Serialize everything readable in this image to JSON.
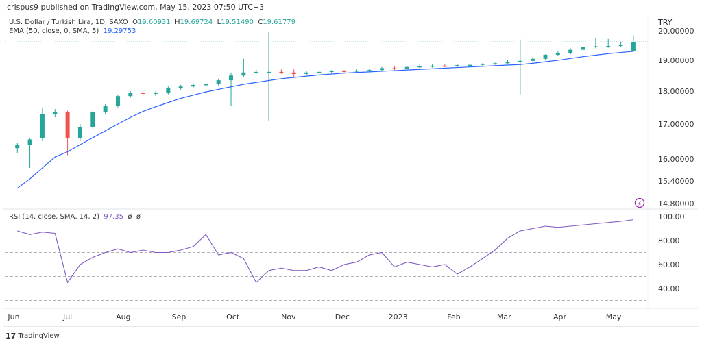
{
  "header": {
    "published": "crispus9 published on TradingView.com, May 15, 2023 07:50 UTC+3"
  },
  "legend": {
    "symbol": "U.S. Dollar / Turkish Lira, 1D, SAXO",
    "o_label": "O",
    "o": "19.60931",
    "h_label": "H",
    "h": "19.69724",
    "l_label": "L",
    "l": "19.51490",
    "c_label": "C",
    "c": "19.61779",
    "ema_label": "EMA (50, close, 0, SMA, 5)",
    "ema_value": "19.29753",
    "rsi_label": "RSI (14, close, SMA, 14, 2)",
    "rsi_value": "97.35",
    "rsi_na1": "ø",
    "rsi_na2": "ø"
  },
  "footer": {
    "brand": "TradingView"
  },
  "colors": {
    "up": "#26a69a",
    "down": "#ef5350",
    "ema": "#2962ff",
    "rsi": "#7e57c2",
    "lightning": "#9c27b0"
  },
  "chart_data": [
    {
      "type": "candlestick",
      "currency": "TRY",
      "scale": "log",
      "ylim": [
        14.8,
        20.0
      ],
      "y_ticks": [
        "20.00000",
        "19.00000",
        "18.00000",
        "17.00000",
        "16.00000",
        "15.40000",
        "14.80000"
      ],
      "y_tick_values": [
        20,
        19,
        18,
        17,
        16,
        15.4,
        14.8
      ],
      "x_ticks": [
        "Jun",
        "Jul",
        "Aug",
        "Sep",
        "Oct",
        "Nov",
        "Dec",
        "2023",
        "Feb",
        "Mar",
        "Apr",
        "May"
      ],
      "x_tick_dates": [
        "2022-06-01",
        "2022-07-01",
        "2022-08-01",
        "2022-09-01",
        "2022-10-01",
        "2022-11-01",
        "2022-12-01",
        "2023-01-01",
        "2023-02-01",
        "2023-03-01",
        "2023-04-01",
        "2023-05-01"
      ],
      "last_price": 19.61779,
      "ohlc": [
        [
          "2022-06-03",
          16.3,
          16.45,
          16.15,
          16.4
        ],
        [
          "2022-06-10",
          16.4,
          16.6,
          15.75,
          16.55
        ],
        [
          "2022-06-17",
          16.6,
          17.5,
          16.5,
          17.3
        ],
        [
          "2022-06-24",
          17.3,
          17.45,
          17.2,
          17.35
        ],
        [
          "2022-07-01",
          17.35,
          17.4,
          16.1,
          16.6
        ],
        [
          "2022-07-08",
          16.6,
          17.0,
          16.5,
          16.9
        ],
        [
          "2022-07-15",
          16.9,
          17.4,
          16.85,
          17.35
        ],
        [
          "2022-07-22",
          17.35,
          17.6,
          17.3,
          17.55
        ],
        [
          "2022-07-29",
          17.55,
          17.9,
          17.5,
          17.85
        ],
        [
          "2022-08-05",
          17.85,
          18.0,
          17.8,
          17.95
        ],
        [
          "2022-08-12",
          17.95,
          18.0,
          17.85,
          17.92
        ],
        [
          "2022-08-19",
          17.92,
          18.0,
          17.85,
          17.95
        ],
        [
          "2022-08-26",
          17.95,
          18.15,
          17.9,
          18.1
        ],
        [
          "2022-09-02",
          18.1,
          18.2,
          18.05,
          18.15
        ],
        [
          "2022-09-09",
          18.15,
          18.25,
          18.1,
          18.2
        ],
        [
          "2022-09-16",
          18.2,
          18.25,
          18.15,
          18.22
        ],
        [
          "2022-09-23",
          18.22,
          18.4,
          18.18,
          18.35
        ],
        [
          "2022-09-30",
          18.35,
          18.6,
          17.55,
          18.5
        ],
        [
          "2022-10-07",
          18.5,
          19.05,
          18.45,
          18.6
        ],
        [
          "2022-10-14",
          18.6,
          18.7,
          18.55,
          18.62
        ],
        [
          "2022-10-21",
          18.62,
          19.95,
          17.1,
          18.62
        ],
        [
          "2022-10-28",
          18.62,
          18.7,
          18.55,
          18.6
        ],
        [
          "2022-11-04",
          18.6,
          18.7,
          18.45,
          18.55
        ],
        [
          "2022-11-11",
          18.55,
          18.65,
          18.5,
          18.6
        ],
        [
          "2022-11-18",
          18.6,
          18.65,
          18.55,
          18.62
        ],
        [
          "2022-11-25",
          18.62,
          18.68,
          18.58,
          18.65
        ],
        [
          "2022-12-02",
          18.65,
          18.68,
          18.6,
          18.64
        ],
        [
          "2022-12-09",
          18.64,
          18.7,
          18.6,
          18.66
        ],
        [
          "2022-12-16",
          18.66,
          18.72,
          18.62,
          18.68
        ],
        [
          "2022-12-23",
          18.68,
          18.78,
          18.64,
          18.74
        ],
        [
          "2022-12-30",
          18.74,
          18.8,
          18.68,
          18.72
        ],
        [
          "2023-01-06",
          18.72,
          18.8,
          18.7,
          18.78
        ],
        [
          "2023-01-13",
          18.78,
          18.85,
          18.74,
          18.8
        ],
        [
          "2023-01-20",
          18.8,
          18.86,
          18.76,
          18.82
        ],
        [
          "2023-01-27",
          18.82,
          18.86,
          18.78,
          18.81
        ],
        [
          "2023-02-03",
          18.81,
          18.86,
          18.78,
          18.84
        ],
        [
          "2023-02-10",
          18.84,
          18.88,
          18.8,
          18.85
        ],
        [
          "2023-02-17",
          18.85,
          18.9,
          18.82,
          18.88
        ],
        [
          "2023-02-24",
          18.88,
          18.92,
          18.85,
          18.9
        ],
        [
          "2023-03-03",
          18.9,
          19.0,
          18.86,
          18.95
        ],
        [
          "2023-03-10",
          18.95,
          19.7,
          17.9,
          18.98
        ],
        [
          "2023-03-17",
          18.98,
          19.1,
          18.9,
          19.05
        ],
        [
          "2023-03-24",
          19.05,
          19.2,
          19.0,
          19.18
        ],
        [
          "2023-03-31",
          19.18,
          19.3,
          19.15,
          19.25
        ],
        [
          "2023-04-07",
          19.25,
          19.4,
          19.2,
          19.35
        ],
        [
          "2023-04-14",
          19.35,
          19.75,
          19.3,
          19.45
        ],
        [
          "2023-04-21",
          19.45,
          19.75,
          19.4,
          19.47
        ],
        [
          "2023-04-28",
          19.47,
          19.72,
          19.42,
          19.48
        ],
        [
          "2023-05-05",
          19.48,
          19.6,
          19.44,
          19.52
        ],
        [
          "2023-05-12",
          19.3,
          19.85,
          19.28,
          19.61779
        ]
      ],
      "ema": [
        15.2,
        15.45,
        15.75,
        16.05,
        16.2,
        16.4,
        16.6,
        16.8,
        17.0,
        17.2,
        17.38,
        17.52,
        17.65,
        17.78,
        17.88,
        17.98,
        18.06,
        18.14,
        18.22,
        18.28,
        18.34,
        18.4,
        18.44,
        18.48,
        18.52,
        18.55,
        18.58,
        18.6,
        18.62,
        18.64,
        18.66,
        18.68,
        18.7,
        18.72,
        18.74,
        18.76,
        18.78,
        18.8,
        18.82,
        18.84,
        18.86,
        18.9,
        18.95,
        19.0,
        19.06,
        19.12,
        19.17,
        19.22,
        19.26,
        19.29753
      ]
    },
    {
      "type": "line",
      "ylim": [
        30,
        100
      ],
      "y_ticks": [
        "100.00",
        "80.00",
        "60.00",
        "40.00"
      ],
      "y_tick_values": [
        100,
        80,
        60,
        40
      ],
      "levels": [
        70,
        50,
        30
      ],
      "rsi": [
        88,
        85,
        87,
        86,
        45,
        60,
        66,
        70,
        73,
        70,
        72,
        70,
        70,
        72,
        75,
        85,
        68,
        70,
        65,
        45,
        55,
        57,
        55,
        55,
        58,
        55,
        60,
        62,
        68,
        70,
        58,
        62,
        60,
        58,
        60,
        52,
        58,
        65,
        72,
        82,
        88,
        90,
        92,
        91,
        92,
        93,
        94,
        95,
        96,
        97.35
      ]
    }
  ]
}
